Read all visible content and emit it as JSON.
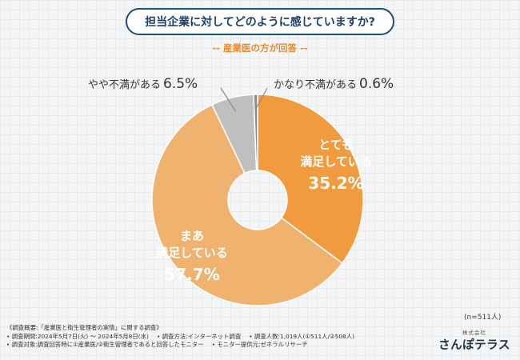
{
  "title": "担当企業に対してどのように感じていますか?",
  "subtitle": "-- 産業医の方が回答 --",
  "chart_data": {
    "type": "pie",
    "donut": true,
    "categories": [
      "とても満足している",
      "まあ満足している",
      "やや不満がある",
      "かなり不満がある"
    ],
    "values": [
      35.2,
      57.7,
      6.5,
      0.6
    ],
    "value_labels": [
      "35.2%",
      "57.7%",
      "6.5%",
      "0.6%"
    ],
    "label_lines": [
      [
        "とても",
        "満足している"
      ],
      [
        "まあ",
        "満足している"
      ],
      [
        "やや不満がある"
      ],
      [
        "かなり不満がある"
      ]
    ],
    "colors": [
      "#f19a3e",
      "#efb26f",
      "#bfbfbf",
      "#8c8c8c"
    ],
    "legend": "none"
  },
  "sample_size": "(n=511人)",
  "footer": {
    "line1": "《調査概要:「産業医と衛生管理者の実情」に関する調査》",
    "line2": [
      "• 調査期間:2024年5月7日(火) 〜 2024年5月8日(水)",
      "• 調査方法:インターネット調査",
      "• 調査人数:1,019人(①511人/②508人)"
    ],
    "line3": [
      "• 調査対象:調査回答時に①産業医/②衛生管理者であると回答したモニター",
      "• モニター提供元:ゼネラルリサーチ"
    ]
  },
  "brand": {
    "sub": "株式会社",
    "name": "さんぽテラス"
  }
}
